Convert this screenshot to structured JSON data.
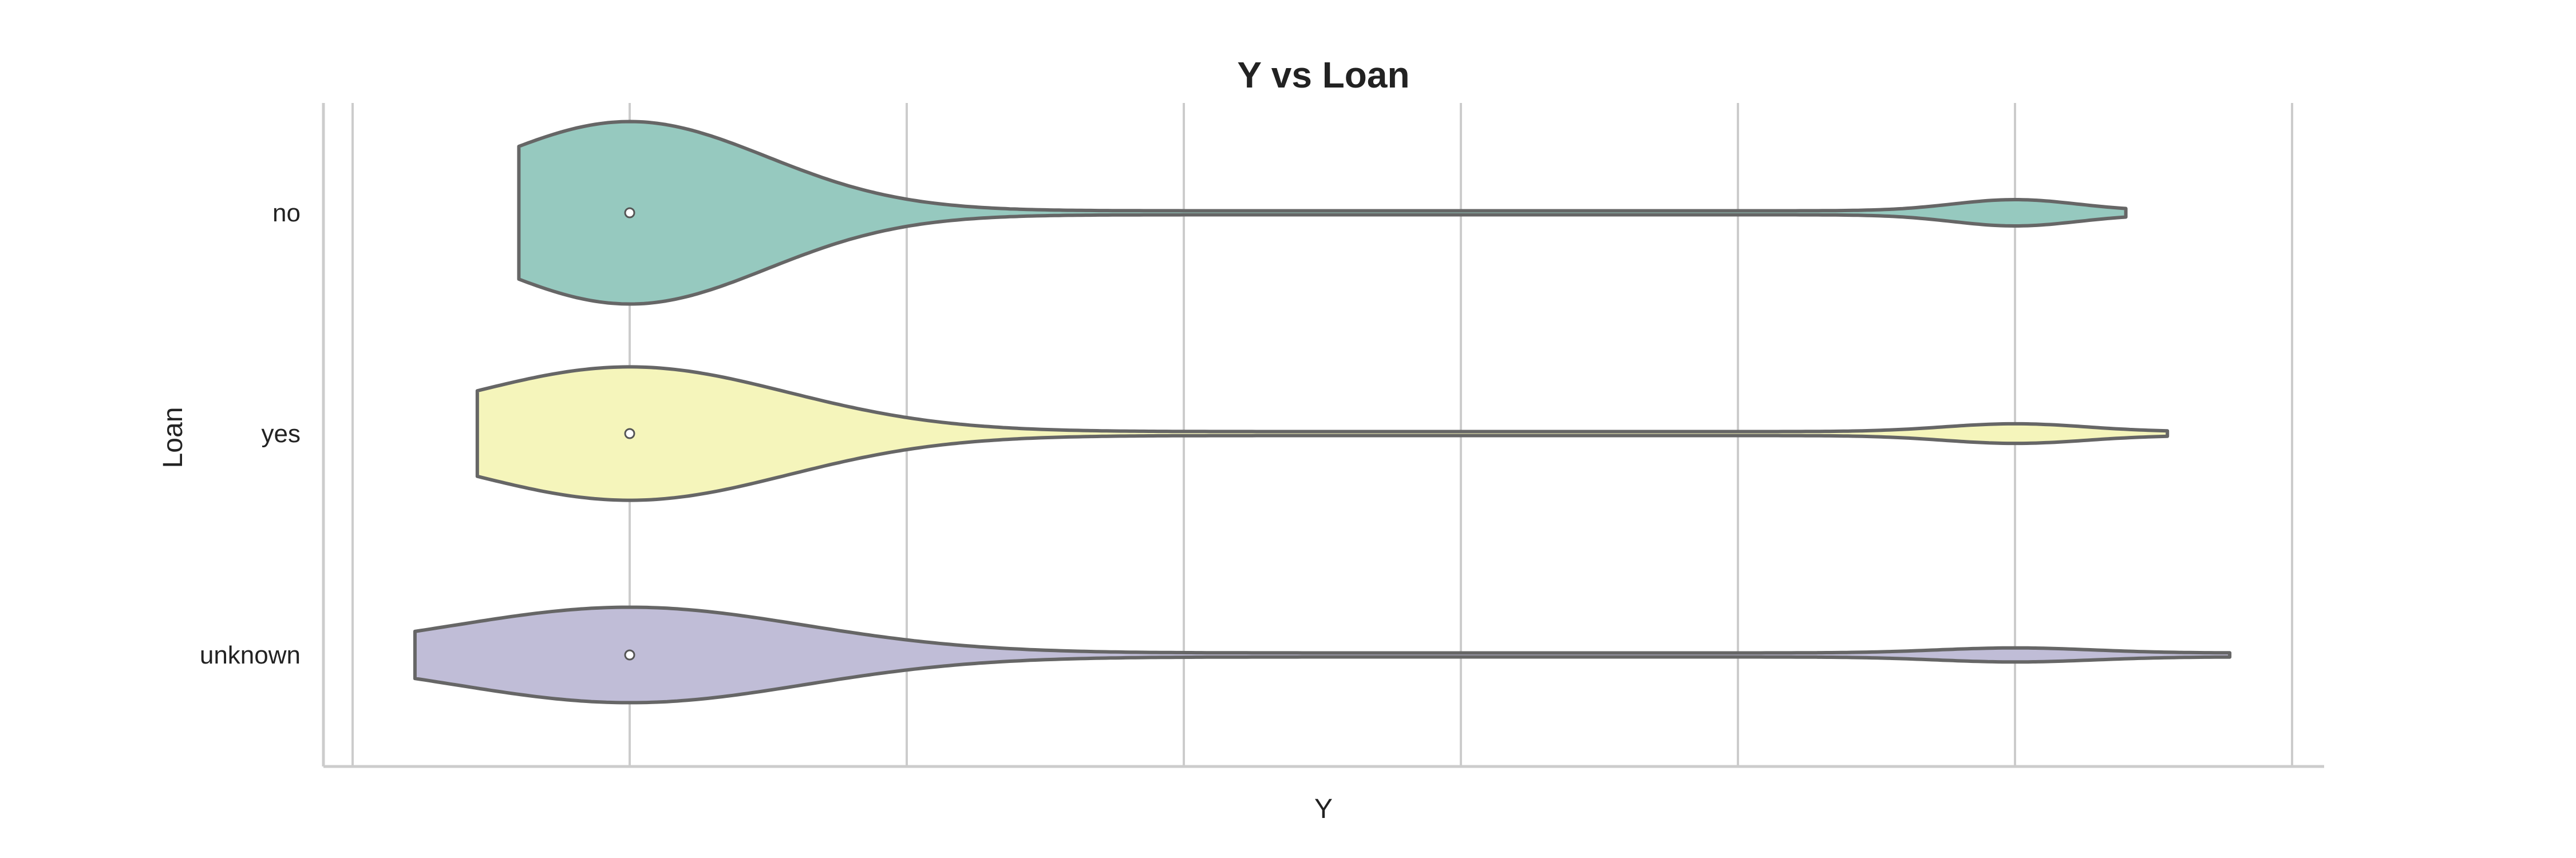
{
  "chart_data": {
    "type": "violin",
    "orientation": "horizontal",
    "title": "Y vs Loan",
    "xlabel": "Y",
    "ylabel": "Loan",
    "x_tick_labels_visible": false,
    "xlim": [
      -0.1,
      1.1
    ],
    "x_gridlines": [
      -0.2,
      0.0,
      0.2,
      0.4,
      0.6,
      0.8,
      1.0,
      1.2
    ],
    "grid": true,
    "categories": [
      "no",
      "yes",
      "unknown"
    ],
    "series": [
      {
        "category": "no",
        "color": "#96c9bf",
        "median": 0.0,
        "range": [
          -0.08,
          1.08
        ],
        "main_mode": {
          "center": 0.0,
          "relative_width": 0.8
        },
        "secondary_mode": {
          "center": 1.0,
          "relative_width": 0.1
        }
      },
      {
        "category": "yes",
        "color": "#f5f5bb",
        "median": 0.0,
        "range": [
          -0.11,
          1.11
        ],
        "main_mode": {
          "center": 0.0,
          "relative_width": 0.58
        },
        "secondary_mode": {
          "center": 1.0,
          "relative_width": 0.07
        }
      },
      {
        "category": "unknown",
        "color": "#c0bdd7",
        "median": 0.0,
        "range": [
          -0.155,
          1.155
        ],
        "main_mode": {
          "center": 0.0,
          "relative_width": 0.41
        },
        "secondary_mode": {
          "center": 1.0,
          "relative_width": 0.045
        }
      }
    ]
  }
}
